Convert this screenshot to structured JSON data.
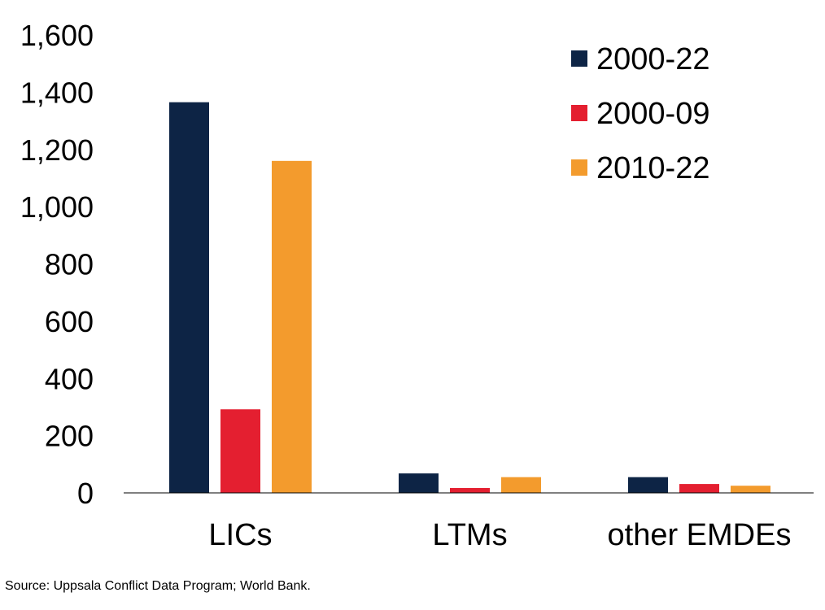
{
  "chart_data": {
    "type": "bar",
    "categories": [
      "LICs",
      "LTMs",
      "other EMDEs"
    ],
    "series": [
      {
        "name": "2000-22",
        "values": [
          1365,
          68,
          55
        ],
        "color": "#0d2445"
      },
      {
        "name": "2000-09",
        "values": [
          292,
          17,
          31
        ],
        "color": "#e41f30"
      },
      {
        "name": "2010-22",
        "values": [
          1160,
          55,
          25
        ],
        "color": "#f39b2d"
      }
    ],
    "ylim": [
      0,
      1600
    ],
    "yticks": [
      "0",
      "200",
      "400",
      "600",
      "800",
      "1,000",
      "1,200",
      "1,400",
      "1,600"
    ],
    "xlabel": "",
    "ylabel": "",
    "grid": false,
    "legend_position": "top-right"
  },
  "source": "Source: Uppsala Conflict Data Program; World Bank."
}
